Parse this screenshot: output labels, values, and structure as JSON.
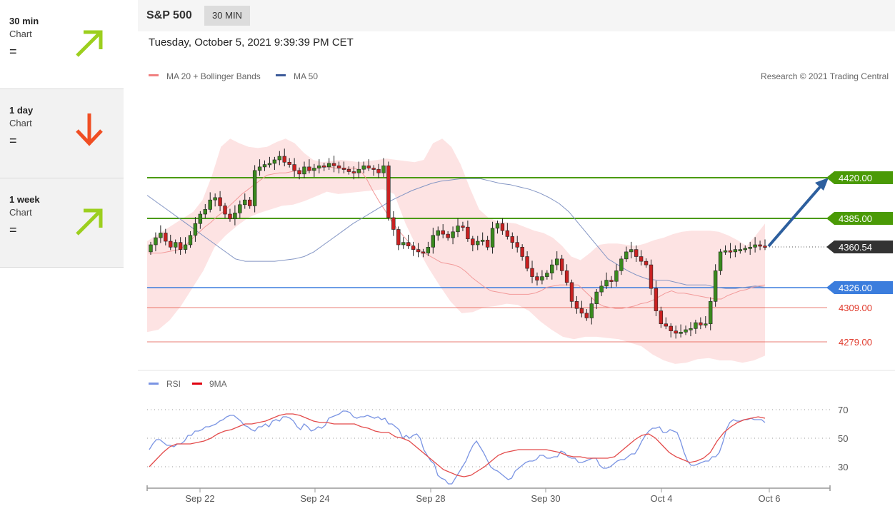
{
  "sidebar": {
    "cards": [
      {
        "timeframe": "30 min",
        "label": "Chart",
        "status": "=",
        "direction": "up",
        "color": "#9ccf1e"
      },
      {
        "timeframe": "1 day",
        "label": "Chart",
        "status": "=",
        "direction": "down",
        "color": "#f04e23"
      },
      {
        "timeframe": "1 week",
        "label": "Chart",
        "status": "=",
        "direction": "up",
        "color": "#9ccf1e"
      }
    ]
  },
  "header": {
    "symbol": "S&P 500",
    "timeframe_badge": "30 MIN",
    "datetime": "Tuesday, October 5, 2021 9:39:39 PM CET"
  },
  "chart_data": {
    "type": "candlestick",
    "legend": [
      {
        "name": "MA 20 + Bollinger Bands",
        "color": "#f08080"
      },
      {
        "name": "MA 50",
        "color": "#3c5a99"
      }
    ],
    "credit": "Research © 2021 Trading Central",
    "x_ticks": [
      "Sep 22",
      "Sep 24",
      "Sep 28",
      "Sep 30",
      "Oct 4",
      "Oct 6"
    ],
    "ylim": [
      4255,
      4450
    ],
    "levels": [
      {
        "value": 4420.0,
        "label": "4420.00",
        "kind": "target",
        "color": "#4a9a06"
      },
      {
        "value": 4385.0,
        "label": "4385.00",
        "kind": "resistance",
        "color": "#4a9a06"
      },
      {
        "value": 4360.54,
        "label": "4360.54",
        "kind": "last",
        "color": "#333333"
      },
      {
        "value": 4326.0,
        "label": "4326.00",
        "kind": "pivot",
        "color": "#3b7ddd"
      },
      {
        "value": 4309.0,
        "label": "4309.00",
        "kind": "support",
        "color": "#e0392b"
      },
      {
        "value": 4279.0,
        "label": "4279.00",
        "kind": "support",
        "color": "#e0392b"
      }
    ],
    "close": [
      4362,
      4368,
      4372,
      4365,
      4360,
      4364,
      4358,
      4362,
      4370,
      4380,
      4388,
      4392,
      4400,
      4402,
      4395,
      4388,
      4384,
      4389,
      4396,
      4400,
      4395,
      4425,
      4428,
      4430,
      4431,
      4434,
      4437,
      4432,
      4430,
      4425,
      4422,
      4428,
      4425,
      4427,
      4429,
      4428,
      4431,
      4429,
      4427,
      4426,
      4424,
      4423,
      4426,
      4429,
      4427,
      4426,
      4423,
      4429,
      4385,
      4375,
      4362,
      4364,
      4361,
      4358,
      4356,
      4355,
      4360,
      4370,
      4374,
      4371,
      4368,
      4373,
      4378,
      4377,
      4367,
      4362,
      4365,
      4366,
      4360,
      4376,
      4380,
      4374,
      4369,
      4364,
      4360,
      4352,
      4342,
      4335,
      4332,
      4335,
      4338,
      4345,
      4350,
      4340,
      4330,
      4314,
      4308,
      4304,
      4300,
      4312,
      4322,
      4327,
      4332,
      4331,
      4340,
      4350,
      4356,
      4358,
      4352,
      4348,
      4345,
      4325,
      4306,
      4295,
      4293,
      4289,
      4287,
      4288,
      4290,
      4291,
      4296,
      4294,
      4295,
      4314,
      4340,
      4356,
      4357,
      4356,
      4358,
      4358,
      4359,
      4360,
      4362,
      4361,
      4360
    ],
    "ma20": [
      4355,
      4355,
      4355,
      4356,
      4357,
      4358,
      4362,
      4367,
      4372,
      4377,
      4381,
      4386,
      4390,
      4395,
      4400,
      4405,
      4409,
      4413,
      4417,
      4421,
      4422,
      4423,
      4423,
      4424,
      4425,
      4424,
      4425,
      4427,
      4428,
      4428,
      4427,
      4427,
      4427,
      4427,
      4425,
      4418,
      4408,
      4399,
      4391,
      4382,
      4375,
      4369,
      4363,
      4359,
      4356,
      4353,
      4350,
      4347,
      4346,
      4345,
      4343,
      4339,
      4334,
      4330,
      4326,
      4323,
      4322,
      4321,
      4320,
      4320,
      4320,
      4320,
      4321,
      4323,
      4326,
      4327,
      4328,
      4328,
      4328,
      4328,
      4323,
      4318,
      4313,
      4310,
      4309,
      4308,
      4308,
      4309,
      4310,
      4312,
      4313,
      4315,
      4318,
      4321,
      4323,
      4321,
      4321,
      4320,
      4319,
      4318,
      4317,
      4316,
      4316,
      4319,
      4321,
      4323,
      4324,
      4326,
      4327,
      4328
    ],
    "ma50": [
      4404,
      4398,
      4392,
      4386,
      4380,
      4374,
      4368,
      4362,
      4356,
      4350,
      4348,
      4348,
      4348,
      4348,
      4349,
      4350,
      4352,
      4356,
      4362,
      4368,
      4374,
      4380,
      4385,
      4390,
      4395,
      4400,
      4404,
      4408,
      4411,
      4414,
      4416,
      4417,
      4418,
      4418,
      4418,
      4416,
      4414,
      4413,
      4411,
      4409,
      4406,
      4402,
      4397,
      4390,
      4380,
      4370,
      4360,
      4350,
      4345,
      4340,
      4336,
      4333,
      4332,
      4332,
      4330,
      4328,
      4328,
      4328,
      4326,
      4325,
      4325,
      4326,
      4327,
      4326
    ],
    "boll_upper": [
      4365,
      4370,
      4375,
      4380,
      4385,
      4390,
      4400,
      4420,
      4445,
      4452,
      4448,
      4445,
      4444,
      4445,
      4449,
      4452,
      4448,
      4440,
      4434,
      4432,
      4433,
      4434,
      4433,
      4432,
      4433,
      4434,
      4435,
      4434,
      4433,
      4432,
      4434,
      4448,
      4452,
      4445,
      4430,
      4410,
      4392,
      4385,
      4382,
      4381,
      4380,
      4377,
      4374,
      4372,
      4368,
      4361,
      4352,
      4349,
      4355,
      4362,
      4363,
      4363,
      4362,
      4361,
      4363,
      4366,
      4368,
      4371,
      4373,
      4374,
      4374,
      4374,
      4373,
      4370,
      4366,
      4361,
      4370,
      4380
    ],
    "boll_lower": [
      4288,
      4290,
      4298,
      4310,
      4325,
      4340,
      4360,
      4370,
      4378,
      4385,
      4389,
      4392,
      4395,
      4396,
      4399,
      4403,
      4407,
      4405,
      4406,
      4407,
      4408,
      4409,
      4405,
      4380,
      4360,
      4343,
      4328,
      4314,
      4304,
      4305,
      4309,
      4310,
      4312,
      4311,
      4306,
      4297,
      4290,
      4284,
      4282,
      4284,
      4284,
      4283,
      4282,
      4279,
      4276,
      4269,
      4264,
      4261,
      4262,
      4265,
      4266,
      4264,
      4264,
      4262,
      4264,
      4268
    ],
    "rsi": [
      42,
      46,
      49,
      49,
      47,
      45,
      45,
      44,
      46,
      46,
      48,
      52,
      52,
      55,
      55,
      56,
      58,
      58,
      59,
      60,
      62,
      63,
      65,
      66,
      66,
      64,
      62,
      59,
      58,
      56,
      55,
      58,
      58,
      60,
      58,
      62,
      63,
      62,
      65,
      65,
      64,
      62,
      58,
      56,
      60,
      58,
      55,
      56,
      58,
      57,
      59,
      64,
      65,
      66,
      67,
      69,
      69,
      68,
      65,
      64,
      65,
      65,
      66,
      65,
      64,
      65,
      63,
      64,
      60,
      60,
      58,
      56,
      50,
      52,
      50,
      52,
      53,
      50,
      42,
      38,
      34,
      32,
      24,
      22,
      21,
      18,
      18,
      22,
      26,
      30,
      34,
      40,
      45,
      48,
      44,
      40,
      35,
      30,
      28,
      27,
      25,
      23,
      21,
      22,
      27,
      29,
      31,
      33,
      34,
      34,
      35,
      38,
      38,
      36,
      36,
      37,
      37,
      41,
      40,
      37,
      36,
      36,
      33,
      33,
      34,
      35,
      36,
      36,
      31,
      29,
      29,
      30,
      32,
      34,
      35,
      35,
      37,
      39,
      39,
      43,
      48,
      52,
      55,
      57,
      57,
      58,
      54,
      54,
      56,
      55,
      54,
      48,
      40,
      34,
      31,
      31,
      32,
      33,
      34,
      34,
      37,
      37,
      40,
      47,
      56,
      61,
      63,
      62,
      62,
      63,
      63,
      64,
      63,
      63,
      63,
      61
    ],
    "rsi_ma": [
      30,
      35,
      40,
      44,
      46,
      46,
      46,
      47,
      48,
      50,
      53,
      55,
      56,
      58,
      60,
      60,
      61,
      62,
      64,
      66,
      67,
      67,
      66,
      64,
      62,
      61,
      61,
      60,
      60,
      60,
      60,
      58,
      57,
      55,
      54,
      54,
      51,
      50,
      48,
      44,
      40,
      36,
      32,
      28,
      26,
      24,
      23,
      24,
      27,
      30,
      34,
      38,
      40,
      41,
      42,
      42,
      42,
      42,
      42,
      41,
      40,
      38,
      37,
      37,
      36,
      36,
      36,
      36,
      37,
      41,
      45,
      49,
      52,
      53,
      50,
      45,
      40,
      37,
      35,
      33,
      34,
      36,
      40,
      48,
      54,
      58,
      61,
      63,
      64,
      65,
      64
    ],
    "rsi_levels": [
      70,
      50,
      30
    ]
  },
  "rsi_panel": {
    "legend": [
      {
        "name": "RSI",
        "color": "#7a94e3"
      },
      {
        "name": "9MA",
        "color": "#e0000f"
      }
    ]
  }
}
